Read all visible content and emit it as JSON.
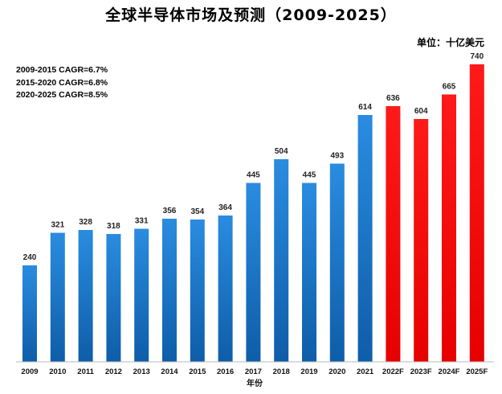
{
  "chart_data": {
    "type": "bar",
    "title": "全球半导体市场及预测（2009-2025）",
    "unit_label": "单位：十亿美元",
    "xlabel": "年份",
    "ylabel": "",
    "ylim": [
      0,
      740
    ],
    "grid": false,
    "annotations": [
      "2009-2015 CAGR=6.7%",
      "2015-2020 CAGR=6.8%",
      "2020-2025 CAGR=8.5%"
    ],
    "categories": [
      "2009",
      "2010",
      "2011",
      "2012",
      "2013",
      "2014",
      "2015",
      "2016",
      "2017",
      "2018",
      "2019",
      "2020",
      "2021",
      "2022F",
      "2023F",
      "2024F",
      "2025F"
    ],
    "values": [
      240,
      321,
      328,
      318,
      331,
      356,
      354,
      364,
      445,
      504,
      445,
      493,
      614,
      636,
      604,
      665,
      740
    ],
    "forecast": [
      false,
      false,
      false,
      false,
      false,
      false,
      false,
      false,
      false,
      false,
      false,
      false,
      false,
      true,
      true,
      true,
      true
    ],
    "colors": {
      "actual": "#1a7ad1",
      "actual_dark": "#0d4f94",
      "forecast": "#ff0000"
    }
  }
}
